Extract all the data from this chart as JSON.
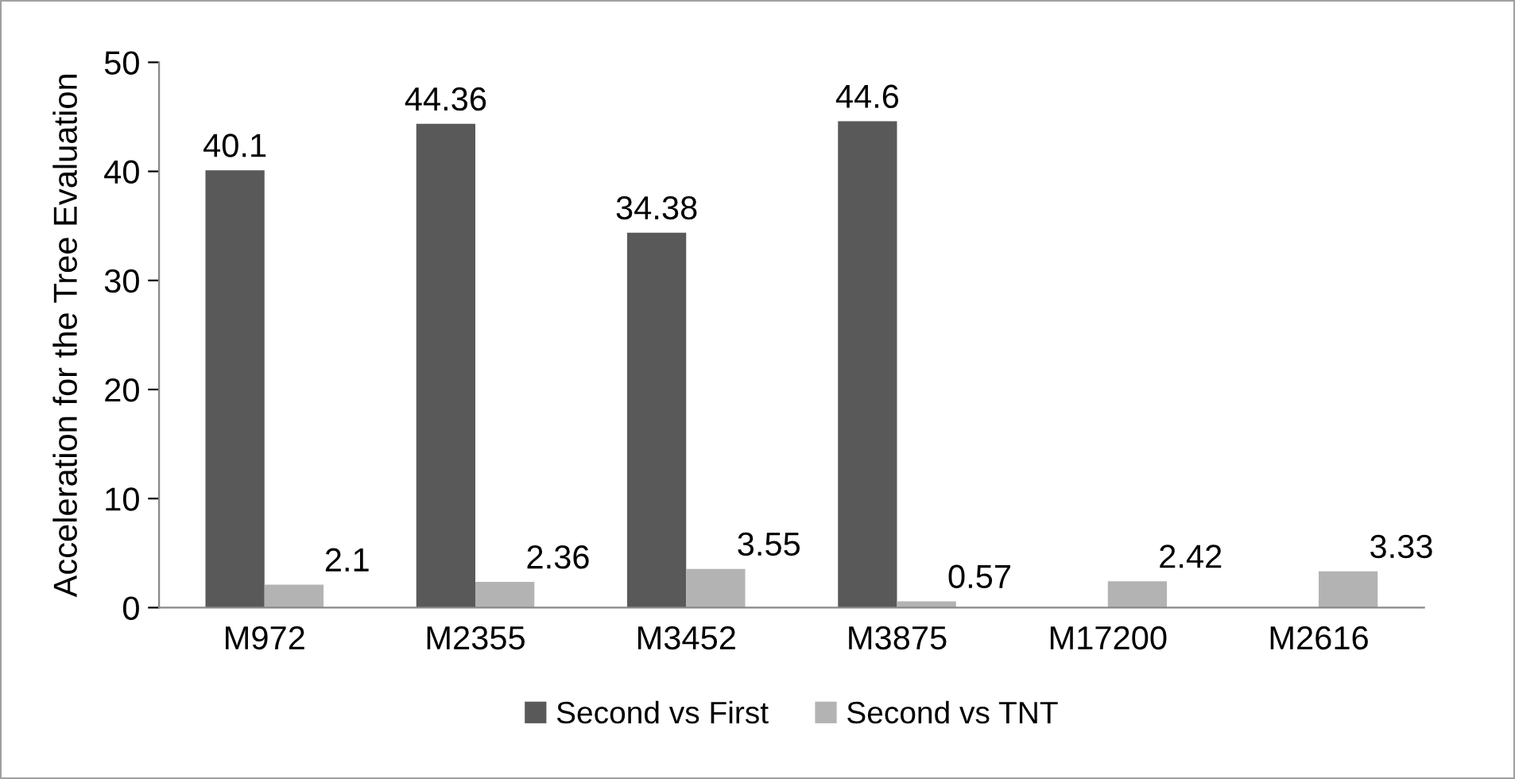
{
  "chart_data": {
    "type": "bar",
    "ylabel": "Acceleration for the Tree Evaluation",
    "categories": [
      "M972",
      "M2355",
      "M3452",
      "M3875",
      "M17200",
      "M2616"
    ],
    "series": [
      {
        "name": "Second vs First",
        "color": "#595959",
        "values": [
          40.1,
          44.36,
          34.38,
          44.6,
          null,
          null
        ]
      },
      {
        "name": "Second vs TNT",
        "color": "#b3b3b3",
        "values": [
          2.1,
          2.36,
          3.55,
          0.57,
          2.42,
          3.33
        ]
      }
    ],
    "ylim": [
      0,
      50
    ],
    "yticks": [
      0,
      10,
      20,
      30,
      40,
      50
    ],
    "grid": false,
    "legend": "bottom",
    "data_labels": true
  }
}
